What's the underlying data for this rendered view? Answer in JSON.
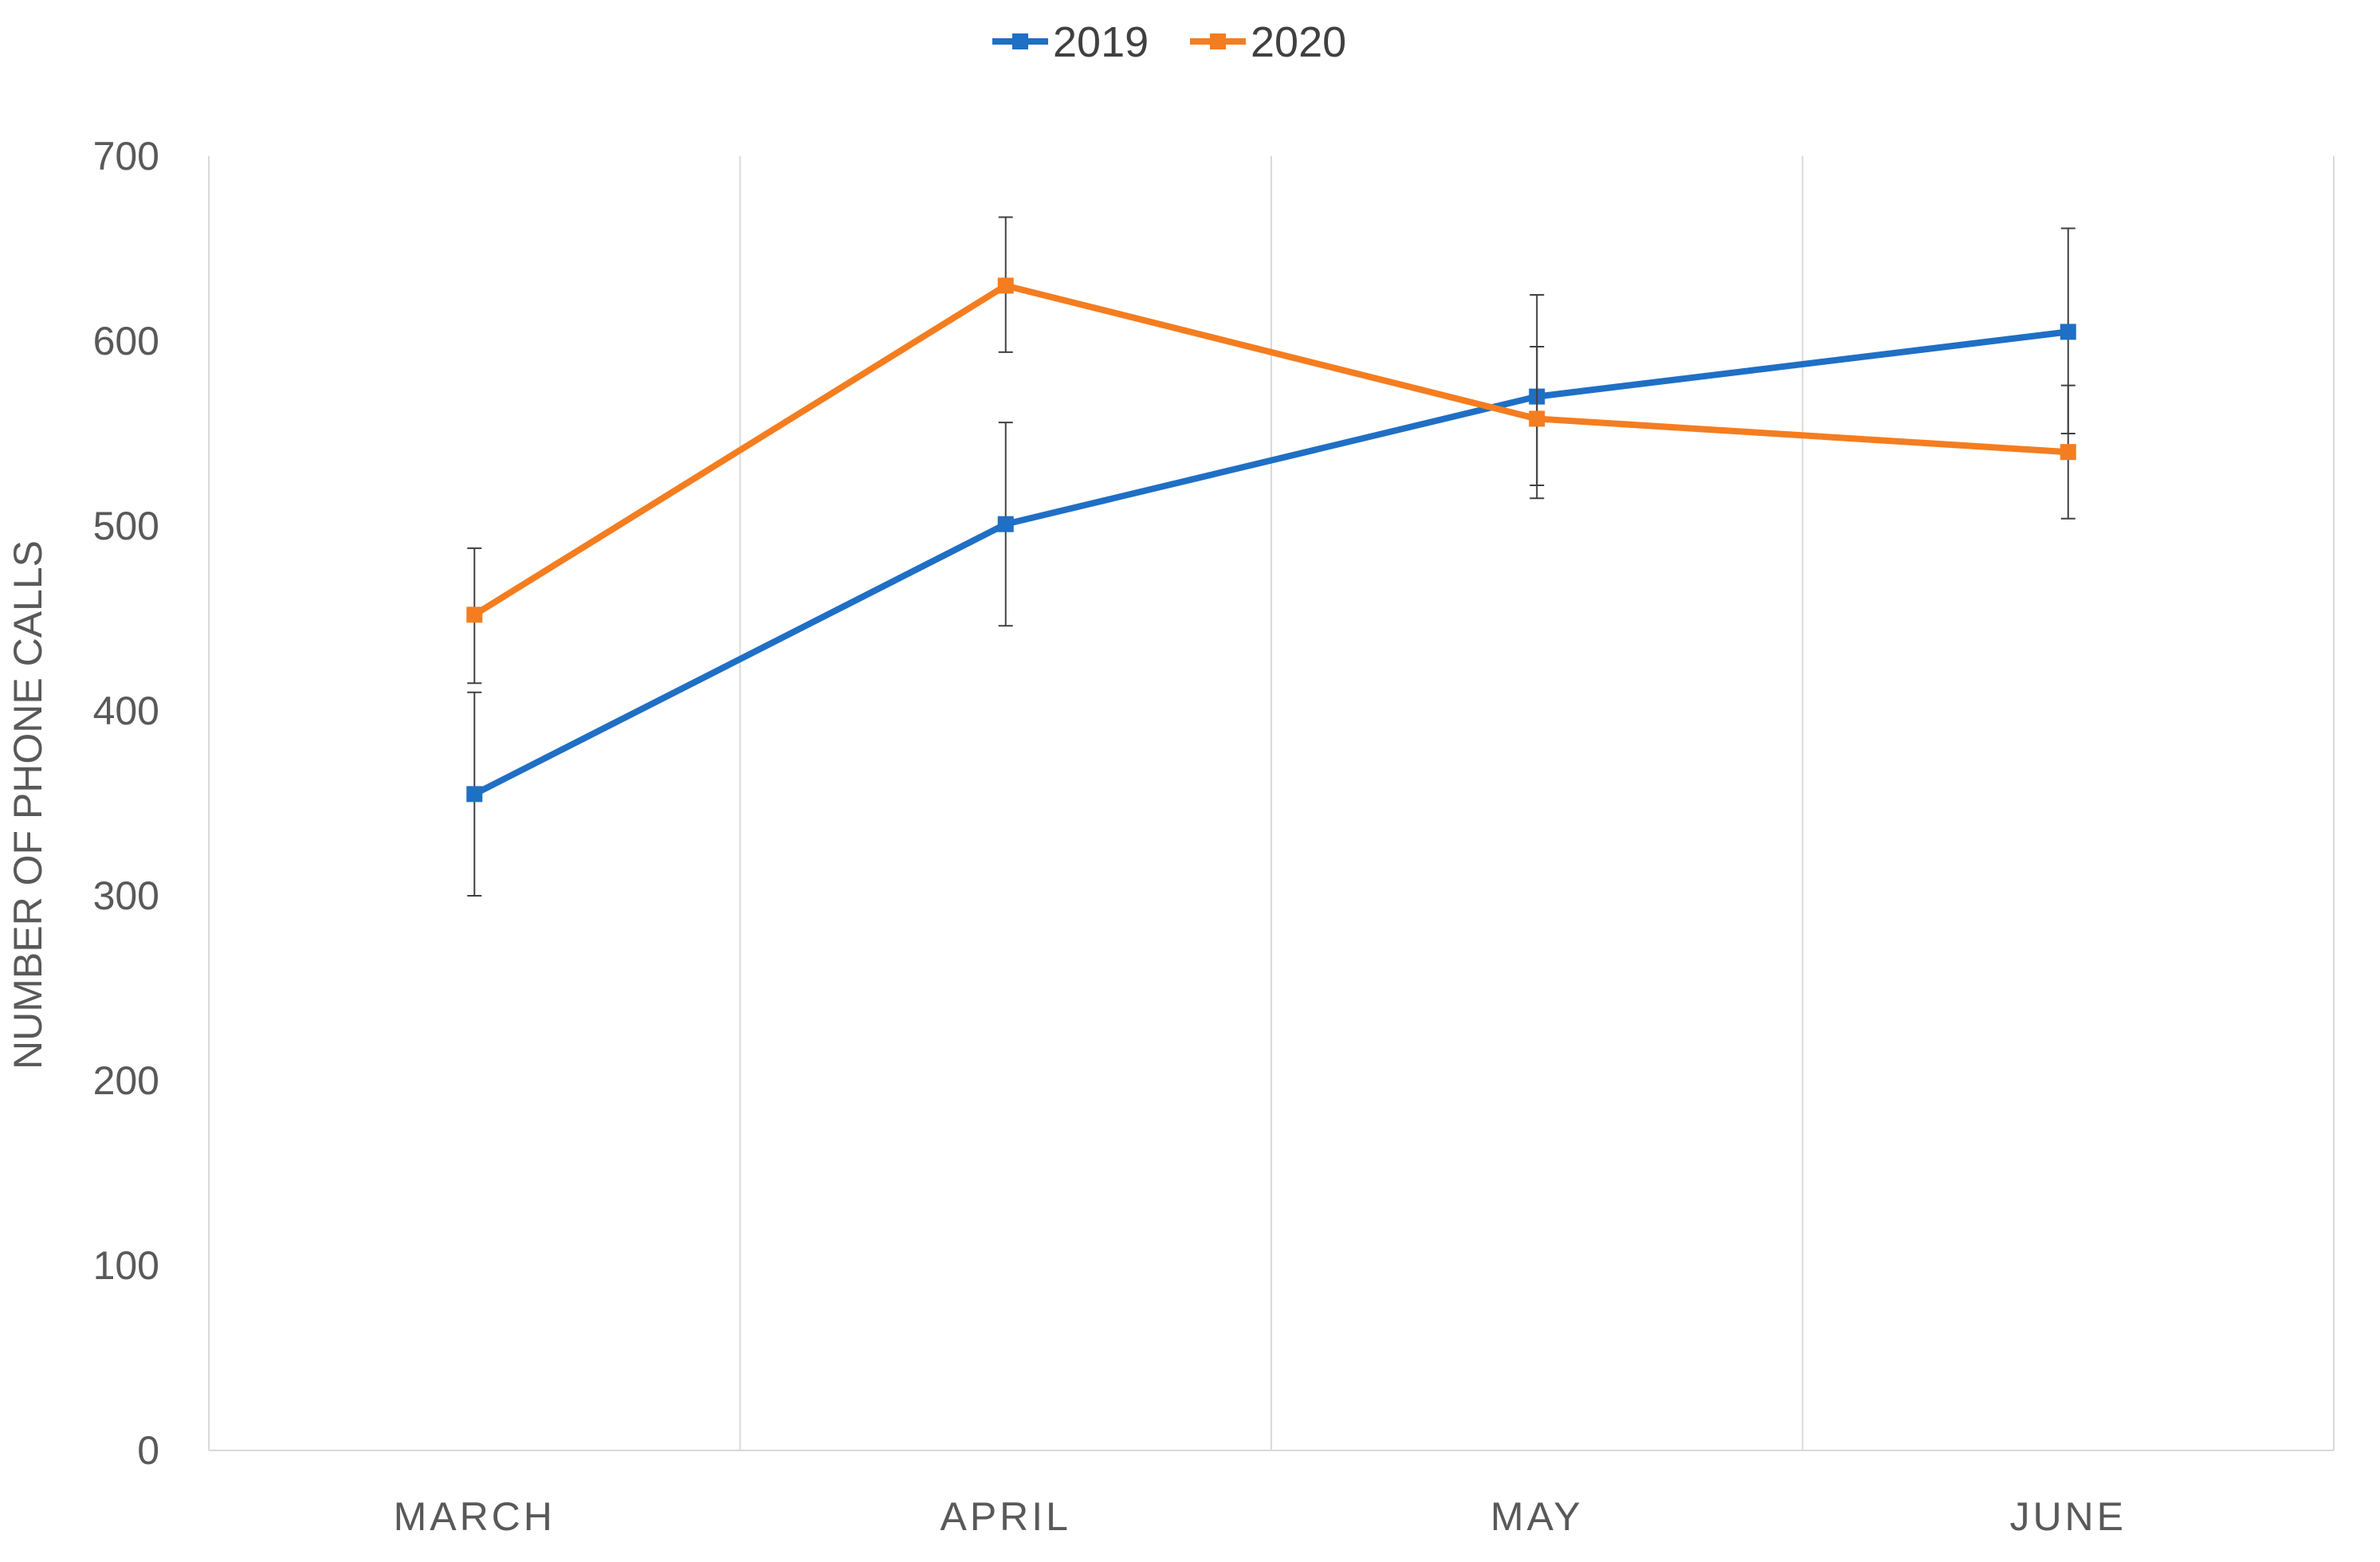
{
  "chart_data": {
    "type": "line",
    "title": "",
    "xlabel": "",
    "ylabel": "NUMBER OF PHONE CALLS",
    "ylim": [
      0,
      700
    ],
    "y_ticks": [
      0,
      100,
      200,
      300,
      400,
      500,
      600,
      700
    ],
    "categories": [
      "MARCH",
      "APRIL",
      "MAY",
      "JUNE"
    ],
    "grid": "vertical",
    "legend_position": "top",
    "series": [
      {
        "name": "2019",
        "color": "#1f6fc5",
        "values": [
          355,
          501,
          570,
          605
        ],
        "error_low": [
          300,
          446,
          522,
          550
        ],
        "error_high": [
          410,
          556,
          625,
          661
        ]
      },
      {
        "name": "2020",
        "color": "#f47d20",
        "values": [
          452,
          630,
          558,
          540
        ],
        "error_low": [
          415,
          594,
          515,
          504
        ],
        "error_high": [
          488,
          667,
          597,
          576
        ]
      }
    ]
  }
}
